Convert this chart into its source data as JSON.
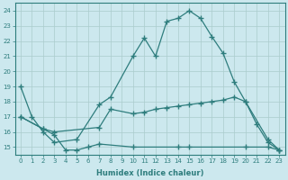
{
  "xlabel": "Humidex (Indice chaleur)",
  "xlim": [
    -0.5,
    23.5
  ],
  "ylim": [
    14.5,
    24.5
  ],
  "yticks": [
    15,
    16,
    17,
    18,
    19,
    20,
    21,
    22,
    23,
    24
  ],
  "xticks": [
    0,
    1,
    2,
    3,
    4,
    5,
    6,
    7,
    8,
    9,
    10,
    11,
    12,
    13,
    14,
    15,
    16,
    17,
    18,
    19,
    20,
    21,
    22,
    23
  ],
  "bg_color": "#cce8ee",
  "line_color": "#2e7d7d",
  "grid_color": "#aacccc",
  "line1_x": [
    0,
    1,
    2,
    3,
    5,
    7,
    8,
    10,
    11,
    12,
    13,
    14,
    15,
    16,
    17,
    18,
    19,
    20,
    21,
    22,
    23
  ],
  "line1_y": [
    19,
    17,
    16,
    15.3,
    15.5,
    17.8,
    18.3,
    21.0,
    22.2,
    21.0,
    23.3,
    23.5,
    24.0,
    23.5,
    22.3,
    21.2,
    19.3,
    18.0,
    16.5,
    15.3,
    14.8
  ],
  "line2_x": [
    0,
    2,
    3,
    7,
    8,
    10,
    11,
    12,
    13,
    14,
    15,
    16,
    17,
    18,
    19,
    20,
    22,
    23
  ],
  "line2_y": [
    17,
    16.2,
    16.0,
    16.3,
    17.5,
    17.2,
    17.3,
    17.5,
    17.6,
    17.7,
    17.8,
    17.9,
    18.0,
    18.1,
    18.3,
    18.0,
    15.5,
    14.8
  ],
  "line3_x": [
    0,
    2,
    3,
    4,
    5,
    6,
    7,
    10,
    14,
    15,
    20,
    22,
    23
  ],
  "line3_y": [
    17,
    16.2,
    15.8,
    14.8,
    14.8,
    15.0,
    15.2,
    15.0,
    15.0,
    15.0,
    15.0,
    15.0,
    14.8
  ]
}
